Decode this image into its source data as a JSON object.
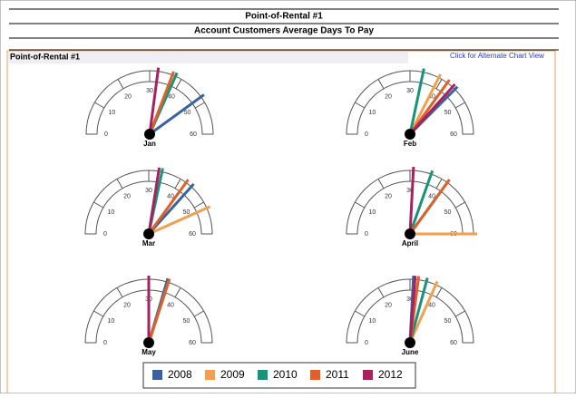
{
  "header": {
    "title": "Point-of-Rental #1",
    "subtitle": "Account Customers Average Days To Pay"
  },
  "panel": {
    "title": "Point-of-Rental #1",
    "link": "Click for Alternate Chart View"
  },
  "chart_data": [
    {
      "type": "gauge",
      "category": "Jan",
      "ylim": [
        0,
        60
      ],
      "yticks": [
        0,
        10,
        20,
        30,
        40,
        50,
        60
      ],
      "series": [
        {
          "name": "2008",
          "color": "#3a62a0",
          "values": [
            48
          ]
        },
        {
          "name": "2009",
          "color": "#f0a050",
          "values": [
            38
          ]
        },
        {
          "name": "2010",
          "color": "#17937a",
          "values": [
            38
          ]
        },
        {
          "name": "2011",
          "color": "#e0602a",
          "values": [
            37
          ]
        },
        {
          "name": "2012",
          "color": "#a8215f",
          "values": [
            32.5
          ]
        }
      ]
    },
    {
      "type": "gauge",
      "category": "Feb",
      "ylim": [
        0,
        60
      ],
      "yticks": [
        0,
        10,
        20,
        30,
        40,
        50,
        60
      ],
      "series": [
        {
          "name": "2008",
          "color": "#3a62a0",
          "values": [
            45
          ]
        },
        {
          "name": "2009",
          "color": "#f0a050",
          "values": [
            39
          ]
        },
        {
          "name": "2010",
          "color": "#17937a",
          "values": [
            34
          ]
        },
        {
          "name": "2011",
          "color": "#e0602a",
          "values": [
            42
          ]
        },
        {
          "name": "2012",
          "color": "#a8215f",
          "values": [
            44
          ]
        }
      ]
    },
    {
      "type": "gauge",
      "category": "Mar",
      "ylim": [
        0,
        60
      ],
      "yticks": [
        0,
        10,
        20,
        30,
        40,
        50,
        60
      ],
      "series": [
        {
          "name": "2008",
          "color": "#3a62a0",
          "values": [
            44
          ]
        },
        {
          "name": "2009",
          "color": "#f0a050",
          "values": [
            52
          ]
        },
        {
          "name": "2010",
          "color": "#17937a",
          "values": [
            34
          ]
        },
        {
          "name": "2011",
          "color": "#e0602a",
          "values": [
            42
          ]
        },
        {
          "name": "2012",
          "color": "#a8215f",
          "values": [
            33
          ]
        }
      ]
    },
    {
      "type": "gauge",
      "category": "April",
      "ylim": [
        0,
        60
      ],
      "yticks": [
        0,
        10,
        20,
        30,
        40,
        50,
        60
      ],
      "series": [
        {
          "name": "2008",
          "color": "#3a62a0",
          "values": [
            42
          ]
        },
        {
          "name": "2009",
          "color": "#f0a050",
          "values": [
            60
          ]
        },
        {
          "name": "2010",
          "color": "#17937a",
          "values": [
            36.5
          ]
        },
        {
          "name": "2011",
          "color": "#e0602a",
          "values": [
            42
          ]
        },
        {
          "name": "2012",
          "color": "#a8215f",
          "values": [
            31
          ]
        }
      ]
    },
    {
      "type": "gauge",
      "category": "May",
      "ylim": [
        0,
        60
      ],
      "yticks": [
        0,
        10,
        20,
        30,
        40,
        50,
        60
      ],
      "series": [
        {
          "name": "2008",
          "color": "#3a62a0",
          "values": [
            35.5
          ]
        },
        {
          "name": "2009",
          "color": "#f0a050",
          "values": [
            36
          ]
        },
        {
          "name": "2010",
          "color": "#17937a",
          "values": [
            36
          ]
        },
        {
          "name": "2011",
          "color": "#e0602a",
          "values": [
            36
          ]
        },
        {
          "name": "2012",
          "color": "#a8215f",
          "values": [
            30
          ]
        }
      ]
    },
    {
      "type": "gauge",
      "category": "June",
      "ylim": [
        0,
        60
      ],
      "yticks": [
        0,
        10,
        20,
        30,
        40,
        50,
        60
      ],
      "series": [
        {
          "name": "2008",
          "color": "#3a62a0",
          "values": [
            31
          ]
        },
        {
          "name": "2009",
          "color": "#f0a050",
          "values": [
            38
          ]
        },
        {
          "name": "2010",
          "color": "#17937a",
          "values": [
            35
          ]
        },
        {
          "name": "2011",
          "color": "#e0602a",
          "values": [
            32.5
          ]
        },
        {
          "name": "2012",
          "color": "#a8215f",
          "values": [
            31.5
          ]
        }
      ]
    }
  ]
}
